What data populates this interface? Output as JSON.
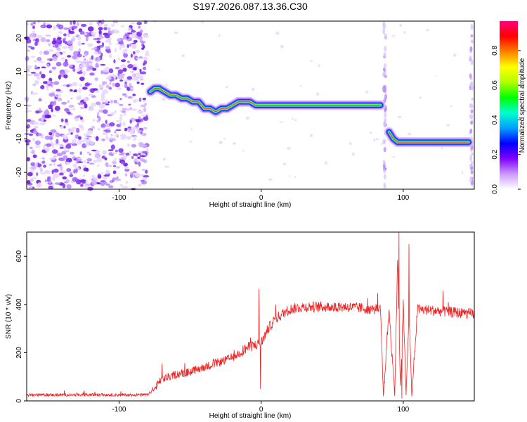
{
  "title": "S197.2026.087.13.36.C30",
  "chart_data": [
    {
      "type": "heatmap",
      "name": "spectrogram",
      "xlabel": "Height of straight line (km)",
      "ylabel": "Frequency (Hz)",
      "xlim": [
        -165,
        150
      ],
      "ylim": [
        -25,
        25
      ],
      "xticks": [
        -100,
        0,
        100
      ],
      "yticks": [
        -20,
        -10,
        0,
        10,
        20
      ],
      "colorbar": {
        "label": "Normalized spectral amplitude",
        "ticks": [
          0.0,
          0.2,
          0.4,
          0.6,
          0.8
        ],
        "range": [
          0,
          0.97
        ],
        "colors": [
          "#ffffff",
          "#cc99ff",
          "#8000ff",
          "#0000ff",
          "#00a0ff",
          "#00ffcc",
          "#00ff00",
          "#b0ff00",
          "#ffff00",
          "#ff8000",
          "#ff0000",
          "#ff0080"
        ]
      },
      "ridge": {
        "segments": [
          {
            "x": [
              -78,
              -75,
              -72,
              -68,
              -64,
              -60,
              -56,
              -52,
              -48,
              -44,
              -40,
              -36,
              -32,
              -28,
              -24,
              -20,
              -16,
              -12,
              -8,
              -4,
              0,
              10,
              20,
              30,
              40,
              50,
              60,
              70,
              80,
              84
            ],
            "y": [
              4,
              5,
              5,
              4,
              3,
              3,
              2,
              2,
              1,
              1,
              -1,
              -1,
              -2,
              -1,
              -1,
              0,
              1,
              1,
              1,
              0,
              0,
              0,
              0,
              0,
              0,
              0,
              0,
              0,
              0,
              0
            ]
          },
          {
            "x": [
              90,
              93,
              96,
              100,
              105,
              110,
              120,
              130,
              140,
              146
            ],
            "y": [
              -8,
              -10,
              -11,
              -11,
              -11,
              -11,
              -11,
              -11,
              -11,
              -11
            ]
          }
        ]
      },
      "noise_region_x": [
        -165,
        -80
      ]
    },
    {
      "type": "line",
      "name": "snr",
      "xlabel": "Height of straight line (km)",
      "ylabel": "SNR (10 * v/v)",
      "xlim": [
        -165,
        150
      ],
      "ylim": [
        0,
        700
      ],
      "xticks": [
        -100,
        0,
        100
      ],
      "yticks": [
        0,
        200,
        400,
        600
      ],
      "color": "#ee2222",
      "trend": {
        "x": [
          -165,
          -80,
          -75,
          -70,
          -60,
          -50,
          -40,
          -30,
          -20,
          -10,
          -5,
          0,
          5,
          10,
          20,
          30,
          40,
          60,
          80,
          84,
          86,
          90,
          94,
          96,
          98,
          100,
          102,
          104,
          106,
          110,
          130,
          150
        ],
        "y": [
          25,
          25,
          50,
          90,
          110,
          120,
          140,
          160,
          180,
          220,
          230,
          240,
          300,
          340,
          380,
          390,
          390,
          390,
          380,
          380,
          20,
          380,
          20,
          600,
          60,
          400,
          20,
          380,
          20,
          380,
          370,
          360
        ]
      },
      "spikes": [
        {
          "x": -1.5,
          "y": 465
        },
        {
          "x": -0.5,
          "y": 50
        },
        {
          "x": 97,
          "y": 700
        },
        {
          "x": 99,
          "y": 10
        },
        {
          "x": 104,
          "y": 650
        }
      ]
    }
  ]
}
